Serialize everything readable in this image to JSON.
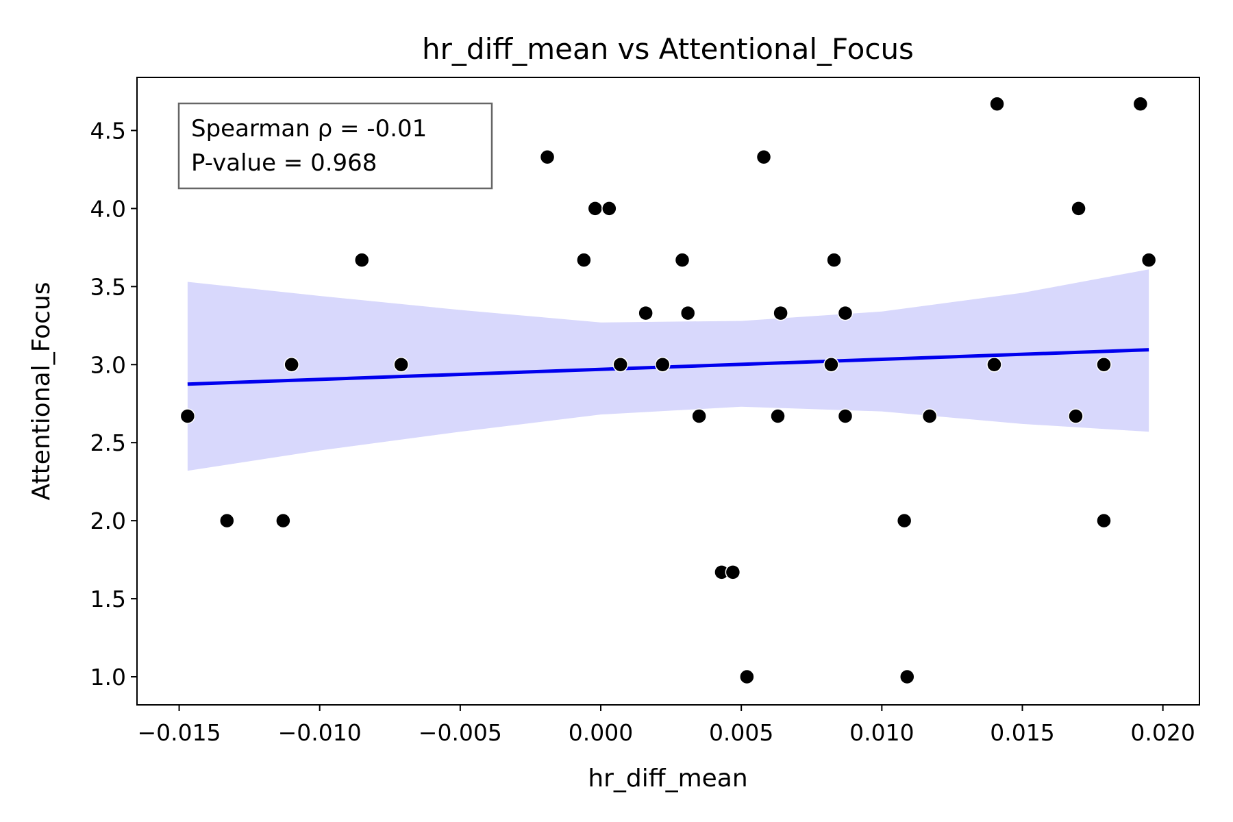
{
  "chart_data": {
    "type": "scatter",
    "title": "hr_diff_mean vs Attentional_Focus",
    "xlabel": "hr_diff_mean",
    "ylabel": "Attentional_Focus",
    "xlim": [
      -0.0165,
      0.0213
    ],
    "ylim": [
      0.82,
      4.84
    ],
    "xticks": [
      -0.015,
      -0.01,
      -0.005,
      0.0,
      0.005,
      0.01,
      0.015,
      0.02
    ],
    "xtick_labels": [
      "−0.015",
      "−0.010",
      "−0.005",
      "0.000",
      "0.005",
      "0.010",
      "0.015",
      "0.020"
    ],
    "yticks": [
      1.0,
      1.5,
      2.0,
      2.5,
      3.0,
      3.5,
      4.0,
      4.5
    ],
    "ytick_labels": [
      "1.0",
      "1.5",
      "2.0",
      "2.5",
      "3.0",
      "3.5",
      "4.0",
      "4.5"
    ],
    "grid": false,
    "annotation": {
      "lines": [
        "Spearman ρ = -0.01",
        "P-value = 0.968"
      ],
      "placement": "top-left"
    },
    "points": {
      "color": "#000000",
      "x": [
        -0.0147,
        -0.0133,
        -0.0113,
        -0.011,
        -0.0085,
        -0.0071,
        -0.0019,
        -0.0006,
        -0.0002,
        0.0003,
        0.0007,
        0.0016,
        0.0022,
        0.0029,
        0.0031,
        0.0035,
        0.0043,
        0.0047,
        0.0052,
        0.0058,
        0.0063,
        0.0064,
        0.0082,
        0.0083,
        0.0087,
        0.0087,
        0.0108,
        0.0109,
        0.0117,
        0.014,
        0.0141,
        0.0169,
        0.017,
        0.0179,
        0.0179,
        0.0192,
        0.0195
      ],
      "y": [
        2.67,
        2.0,
        2.0,
        3.0,
        3.67,
        3.0,
        4.33,
        3.67,
        4.0,
        4.0,
        3.0,
        3.33,
        3.0,
        3.67,
        3.33,
        2.67,
        1.67,
        1.67,
        1.0,
        4.33,
        2.67,
        3.33,
        3.0,
        3.67,
        2.67,
        3.33,
        2.0,
        1.0,
        2.67,
        3.0,
        4.67,
        2.67,
        4.0,
        3.0,
        2.0,
        4.67,
        3.67
      ]
    },
    "regression": {
      "color": "#0000ee",
      "x": [
        -0.0147,
        0.0195
      ],
      "y": [
        2.875,
        3.095
      ]
    },
    "confidence_band": {
      "color": "#d8d8fc",
      "x": [
        -0.0147,
        -0.01,
        -0.005,
        0.0,
        0.005,
        0.01,
        0.015,
        0.0195
      ],
      "upper": [
        3.53,
        3.44,
        3.35,
        3.27,
        3.28,
        3.34,
        3.46,
        3.61
      ],
      "lower": [
        2.32,
        2.45,
        2.57,
        2.68,
        2.73,
        2.7,
        2.62,
        2.57
      ]
    }
  }
}
